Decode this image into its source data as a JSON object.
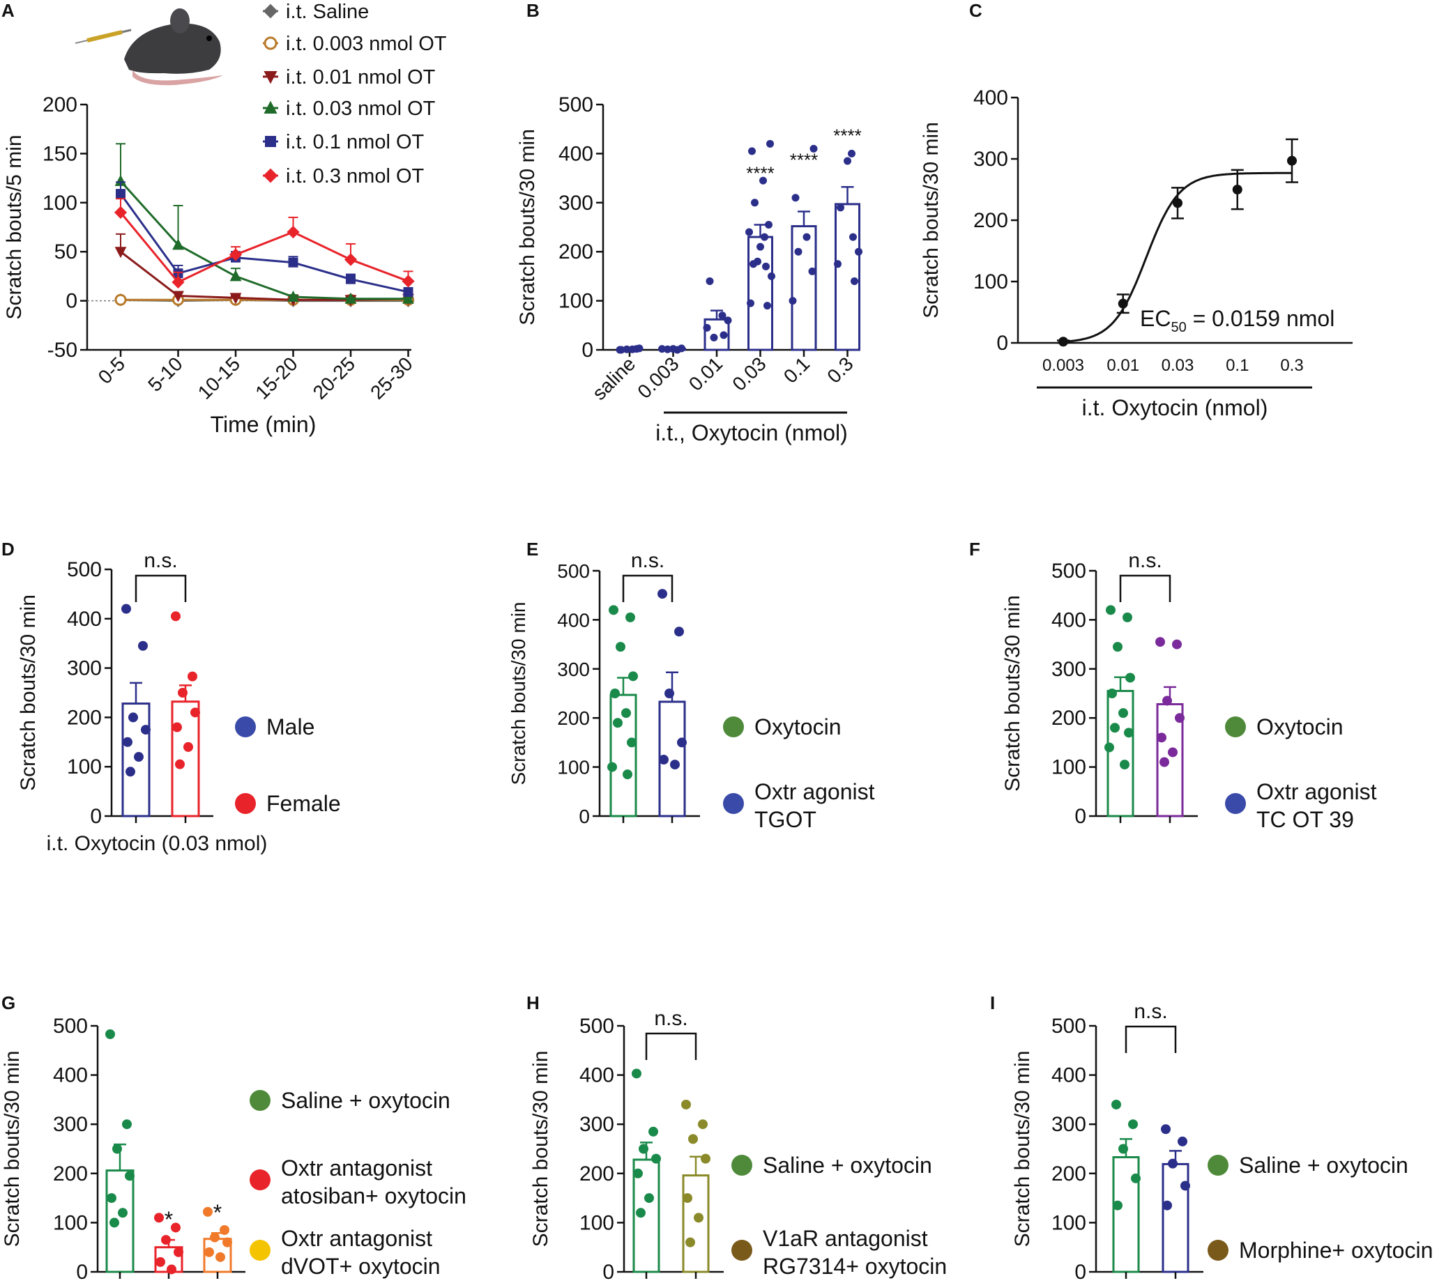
{
  "colors": {
    "green": "#1a8a4a",
    "navy": "#2b2f8a",
    "red": "#e8232a",
    "orange": "#f07a2a",
    "olive": "#8a8a2a",
    "purple": "#7a2a9a",
    "dark_red": "#8b1a1a",
    "dark_green": "#1f6b2a",
    "brown": "#b87a2a",
    "gray": "#666666",
    "black": "#111111",
    "leg_green": "#4f8a3a",
    "leg_blue": "#3a4aa8",
    "leg_yellow": "#f5c400",
    "leg_brown": "#7a5a1a"
  },
  "panels": {
    "A": {
      "letter": "A",
      "chart_data": {
        "type": "line",
        "title": "",
        "xlabel": "Time (min)",
        "ylabel": "Scratch bouts/5 min",
        "categories": [
          "0-5",
          "5-10",
          "10-15",
          "15-20",
          "20-25",
          "25-30"
        ],
        "ylim": [
          -50,
          200
        ],
        "yticks": [
          -50,
          0,
          50,
          100,
          150,
          200
        ],
        "series": [
          {
            "name": "i.t. Saline",
            "marker": "diamond",
            "color": "gray",
            "values": [
              1,
              0,
              1,
              0,
              0,
              0
            ],
            "err": [
              0,
              0,
              0,
              0,
              0,
              0
            ]
          },
          {
            "name": "i.t. 0.003 nmol OT",
            "marker": "circle-open",
            "color": "brown",
            "values": [
              1,
              1,
              1,
              1,
              1,
              1
            ],
            "err": [
              0,
              0,
              0,
              0,
              0,
              0
            ]
          },
          {
            "name": "i.t. 0.01 nmol    OT",
            "marker": "tri-down",
            "color": "dark_red",
            "values": [
              50,
              5,
              3,
              1,
              1,
              2
            ],
            "err": [
              18,
              3,
              2,
              1,
              1,
              1
            ]
          },
          {
            "name": "i.t. 0.03 nmol OT",
            "marker": "tri-up",
            "color": "dark_green",
            "values": [
              122,
              57,
              25,
              4,
              2,
              2
            ],
            "err": [
              38,
              40,
              8,
              2,
              1,
              1
            ]
          },
          {
            "name": "i.t. 0.1 nmol    OT",
            "marker": "square",
            "color": "navy",
            "values": [
              109,
              28,
              44,
              39,
              22,
              9
            ],
            "err": [
              12,
              8,
              6,
              6,
              5,
              3
            ]
          },
          {
            "name": "i.t. 0.3 nmol    OT",
            "marker": "diamond",
            "color": "red",
            "values": [
              90,
              19,
              47,
              70,
              42,
              20
            ],
            "err": [
              14,
              10,
              8,
              15,
              16,
              10
            ]
          }
        ]
      }
    },
    "B": {
      "letter": "B",
      "chart_data": {
        "type": "bar",
        "xlabel": "i.t., Oxytocin (nmol)",
        "ylabel": "Scratch bouts/30 min",
        "categories": [
          "saline",
          "0.003",
          "0.01",
          "0.03",
          "0.1",
          "0.3"
        ],
        "values": [
          1,
          2,
          62,
          230,
          252,
          297
        ],
        "err": [
          1,
          1,
          18,
          25,
          30,
          35
        ],
        "significance": [
          "",
          "",
          "",
          "****",
          "****",
          "****"
        ],
        "ylim": [
          0,
          500
        ],
        "yticks": [
          0,
          100,
          200,
          300,
          400,
          500
        ],
        "points": [
          [
            0,
            0
          ],
          [
            0,
            2
          ],
          [
            0,
            1
          ],
          [
            0,
            3
          ],
          [
            0,
            0
          ],
          [
            0,
            1
          ],
          [
            1,
            1
          ],
          [
            1,
            3
          ],
          [
            1,
            2
          ],
          [
            1,
            0
          ],
          [
            1,
            2
          ],
          [
            2,
            140
          ],
          [
            2,
            70
          ],
          [
            2,
            60
          ],
          [
            2,
            45
          ],
          [
            2,
            30
          ],
          [
            2,
            25
          ],
          [
            3,
            420
          ],
          [
            3,
            405
          ],
          [
            3,
            345
          ],
          [
            3,
            300
          ],
          [
            3,
            255
          ],
          [
            3,
            240
          ],
          [
            3,
            230
          ],
          [
            3,
            210
          ],
          [
            3,
            175
          ],
          [
            3,
            170
          ],
          [
            3,
            150
          ],
          [
            3,
            95
          ],
          [
            3,
            90
          ],
          [
            3,
            180
          ],
          [
            4,
            410
          ],
          [
            4,
            310
          ],
          [
            4,
            230
          ],
          [
            4,
            200
          ],
          [
            4,
            160
          ],
          [
            4,
            100
          ],
          [
            5,
            400
          ],
          [
            5,
            385
          ],
          [
            5,
            290
          ],
          [
            5,
            230
          ],
          [
            5,
            200
          ],
          [
            5,
            175
          ],
          [
            5,
            140
          ]
        ]
      }
    },
    "C": {
      "letter": "C",
      "chart_data": {
        "type": "line",
        "xlabel": "i.t. Oxytocin (nmol)",
        "ylabel": "Scratch bouts/30 min",
        "x": [
          0.003,
          0.01,
          0.03,
          0.1,
          0.3
        ],
        "x_tick_labels": [
          "0.003",
          "0.01",
          "0.03",
          "0.1",
          "0.3"
        ],
        "values": [
          2,
          64,
          228,
          250,
          297
        ],
        "err": [
          2,
          15,
          25,
          32,
          35
        ],
        "fit": {
          "bottom": 0,
          "top": 277,
          "ec50": 0.0159,
          "hill": 3
        },
        "annotation": {
          "main": "EC",
          "sub": "50",
          "rest": " = 0.0159 nmol"
        },
        "ylim": [
          0,
          400
        ],
        "yticks": [
          0,
          100,
          200,
          300,
          400
        ]
      }
    },
    "D": {
      "letter": "D",
      "chart_data": {
        "type": "bar",
        "xlabel": "i.t. Oxytocin (0.03 nmol)",
        "ylabel": "Scratch bouts/30 min",
        "categories": [
          "Male",
          "Female"
        ],
        "values": [
          228,
          232
        ],
        "err": [
          42,
          33
        ],
        "colors": [
          "navy",
          "red"
        ],
        "points": [
          [
            420,
            345,
            200,
            175,
            150,
            120,
            90
          ],
          [
            405,
            283,
            250,
            210,
            180,
            140,
            105
          ]
        ],
        "comparison": "n.s.",
        "legend": [
          {
            "label": "Male",
            "color": "leg_blue"
          },
          {
            "label": "Female",
            "color": "red"
          }
        ],
        "ylim": [
          0,
          500
        ],
        "yticks": [
          0,
          100,
          200,
          300,
          400,
          500
        ]
      }
    },
    "E": {
      "letter": "E",
      "chart_data": {
        "type": "bar",
        "ylabel": "Scratch bouts/30 min",
        "categories": [
          "Oxytocin",
          "Oxtr agonist TGOT"
        ],
        "values": [
          247,
          233
        ],
        "err": [
          35,
          60
        ],
        "colors": [
          "green",
          "navy"
        ],
        "points": [
          [
            420,
            405,
            345,
            285,
            250,
            210,
            190,
            150,
            100,
            85
          ],
          [
            453,
            376,
            250,
            150,
            115,
            105
          ]
        ],
        "comparison": "n.s.",
        "legend": [
          {
            "label": "Oxytocin",
            "color": "leg_green"
          },
          {
            "label": "Oxtr agonist",
            "label2": "TGOT",
            "color": "leg_blue"
          }
        ],
        "ylim": [
          0,
          500
        ],
        "yticks": [
          0,
          100,
          200,
          300,
          400,
          500
        ]
      }
    },
    "F": {
      "letter": "F",
      "chart_data": {
        "type": "bar",
        "ylabel": "Scratch bouts/30 min",
        "categories": [
          "Oxytocin",
          "Oxtr agonist TC OT 39"
        ],
        "values": [
          255,
          228
        ],
        "err": [
          28,
          35
        ],
        "colors": [
          "green",
          "purple"
        ],
        "points": [
          [
            420,
            405,
            345,
            282,
            250,
            210,
            180,
            170,
            140,
            105
          ],
          [
            355,
            350,
            235,
            200,
            160,
            130,
            110
          ]
        ],
        "comparison": "n.s.",
        "legend": [
          {
            "label": "Oxytocin",
            "color": "leg_green"
          },
          {
            "label": "Oxtr agonist",
            "label2": "TC OT 39",
            "color": "leg_blue"
          }
        ],
        "ylim": [
          0,
          500
        ],
        "yticks": [
          0,
          100,
          200,
          300,
          400,
          500
        ]
      }
    },
    "G": {
      "letter": "G",
      "chart_data": {
        "type": "bar",
        "ylabel": "Scratch bouts/30 min",
        "categories": [
          "Saline + oxytocin",
          "Oxtr antagonist atosiban+ oxytocin",
          "Oxtr antagonist dVOT+ oxytocin"
        ],
        "values": [
          206,
          50,
          67
        ],
        "err": [
          53,
          15,
          12
        ],
        "colors": [
          "green",
          "red",
          "orange"
        ],
        "points": [
          [
            483,
            300,
            250,
            195,
            150,
            120,
            100
          ],
          [
            110,
            90,
            65,
            40,
            20,
            5
          ],
          [
            122,
            85,
            70,
            60,
            40,
            30
          ]
        ],
        "significance": [
          "",
          "*",
          "*"
        ],
        "legend": [
          {
            "label": "Saline + oxytocin",
            "color": "leg_green"
          },
          {
            "label": "Oxtr antagonist",
            "label2": "atosiban+ oxytocin",
            "color": "red"
          },
          {
            "label": "Oxtr antagonist",
            "label2": "dVOT+ oxytocin",
            "color": "leg_yellow"
          }
        ],
        "ylim": [
          0,
          500
        ],
        "yticks": [
          0,
          100,
          200,
          300,
          400,
          500
        ]
      }
    },
    "H": {
      "letter": "H",
      "chart_data": {
        "type": "bar",
        "ylabel": "Scratch bouts/30 min",
        "categories": [
          "Saline + oxytocin",
          "V1aR antagonist RG7314+ oxytocin"
        ],
        "values": [
          228,
          196
        ],
        "err": [
          35,
          38
        ],
        "colors": [
          "green",
          "olive"
        ],
        "points": [
          [
            403,
            285,
            250,
            230,
            200,
            150,
            120
          ],
          [
            340,
            300,
            270,
            230,
            150,
            110,
            60
          ]
        ],
        "comparison": "n.s.",
        "legend": [
          {
            "label": "Saline + oxytocin",
            "color": "leg_green"
          },
          {
            "label": "V1aR antagonist",
            "label2": "RG7314+ oxytocin",
            "color": "leg_brown"
          }
        ],
        "ylim": [
          0,
          500
        ],
        "yticks": [
          0,
          100,
          200,
          300,
          400,
          500
        ]
      }
    },
    "I": {
      "letter": "I",
      "chart_data": {
        "type": "bar",
        "ylabel": "Scratch bouts/30 min",
        "categories": [
          "Saline + oxytocin",
          "Morphine+ oxytocin"
        ],
        "values": [
          233,
          219
        ],
        "err": [
          37,
          27
        ],
        "colors": [
          "green",
          "navy"
        ],
        "points": [
          [
            340,
            300,
            250,
            190,
            135
          ],
          [
            290,
            265,
            220,
            175,
            135
          ]
        ],
        "comparison": "n.s.",
        "legend": [
          {
            "label": "Saline + oxytocin",
            "color": "leg_green"
          },
          {
            "label": "Morphine+ oxytocin",
            "color": "leg_brown"
          }
        ],
        "ylim": [
          0,
          500
        ],
        "yticks": [
          0,
          100,
          200,
          300,
          400,
          500
        ]
      }
    }
  }
}
